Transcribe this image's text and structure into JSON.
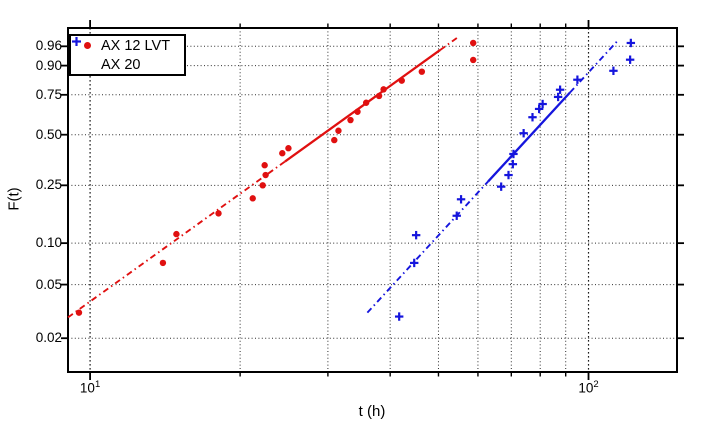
{
  "chart_data": {
    "type": "scatter",
    "title": "",
    "xlabel": "t (h)",
    "ylabel": "F(t)",
    "x_scale": "log10",
    "y_scale": "weibull-probability",
    "xlim": [
      9.03,
      150.5
    ],
    "ylim_F": [
      0.01117,
      0.98802
    ],
    "grid": true,
    "grid_style": "dotted",
    "x_major_ticks": [
      {
        "value": 10,
        "base": "10",
        "exp": "1"
      },
      {
        "value": 100,
        "base": "10",
        "exp": "2"
      }
    ],
    "x_minor_ticks": [
      20,
      30,
      40,
      50,
      60,
      70,
      80,
      90
    ],
    "y_ticks": [
      {
        "value": 0.96,
        "label": "0.96"
      },
      {
        "value": 0.9,
        "label": "0.90"
      },
      {
        "value": 0.75,
        "label": "0.75"
      },
      {
        "value": 0.5,
        "label": "0.50"
      },
      {
        "value": 0.25,
        "label": "0.25"
      },
      {
        "value": 0.1,
        "label": "0.10"
      },
      {
        "value": 0.05,
        "label": "0.05"
      },
      {
        "value": 0.02,
        "label": "0.02"
      }
    ],
    "legend": {
      "position": "top-left",
      "entries": [
        {
          "label": "AX 12 LVT",
          "marker": "dot",
          "color": "#e01010"
        },
        {
          "label": "AX 20",
          "marker": "plus",
          "color": "#1515dd"
        }
      ]
    },
    "series": [
      {
        "name": "AX 12 LVT",
        "marker": "dot",
        "color": "#e01010",
        "points_tF": [
          [
            9.5,
            0.031
          ],
          [
            14.0,
            0.072
          ],
          [
            14.9,
            0.116
          ],
          [
            18.1,
            0.162
          ],
          [
            21.2,
            0.205
          ],
          [
            22.2,
            0.25
          ],
          [
            22.5,
            0.291
          ],
          [
            22.4,
            0.335
          ],
          [
            24.3,
            0.395
          ],
          [
            25.0,
            0.422
          ],
          [
            30.9,
            0.468
          ],
          [
            31.5,
            0.524
          ],
          [
            33.3,
            0.591
          ],
          [
            34.4,
            0.644
          ],
          [
            35.8,
            0.701
          ],
          [
            38.0,
            0.743
          ],
          [
            38.8,
            0.782
          ],
          [
            42.2,
            0.83
          ],
          [
            46.3,
            0.874
          ],
          [
            58.7,
            0.921
          ],
          [
            58.7,
            0.967
          ]
        ],
        "fit_line": {
          "t_start": 9.03,
          "F_start": 0.0286,
          "t_end": 54.5,
          "F_end": 0.976,
          "solid_t_range": [
            24.6,
            50.4
          ],
          "style_outside": "dash-dot",
          "style_inside": "solid"
        }
      },
      {
        "name": "AX 20",
        "marker": "plus",
        "color": "#1515dd",
        "points_tF": [
          [
            41.7,
            0.029
          ],
          [
            44.7,
            0.072
          ],
          [
            45.1,
            0.114
          ],
          [
            54.4,
            0.156
          ],
          [
            55.5,
            0.202
          ],
          [
            66.8,
            0.245
          ],
          [
            69.1,
            0.291
          ],
          [
            70.5,
            0.34
          ],
          [
            70.7,
            0.391
          ],
          [
            74.1,
            0.509
          ],
          [
            77.2,
            0.609
          ],
          [
            79.6,
            0.662
          ],
          [
            80.9,
            0.693
          ],
          [
            86.9,
            0.737
          ],
          [
            87.7,
            0.78
          ],
          [
            95.0,
            0.835
          ],
          [
            112.2,
            0.878
          ],
          [
            121.2,
            0.922
          ],
          [
            121.6,
            0.967
          ]
        ],
        "fit_line": {
          "t_start": 36.0,
          "F_start": 0.031,
          "t_end": 114.1,
          "F_end": 0.97,
          "solid_t_range": [
            62.9,
            91.8
          ],
          "style_outside": "dash-dot",
          "style_inside": "solid"
        }
      }
    ]
  }
}
